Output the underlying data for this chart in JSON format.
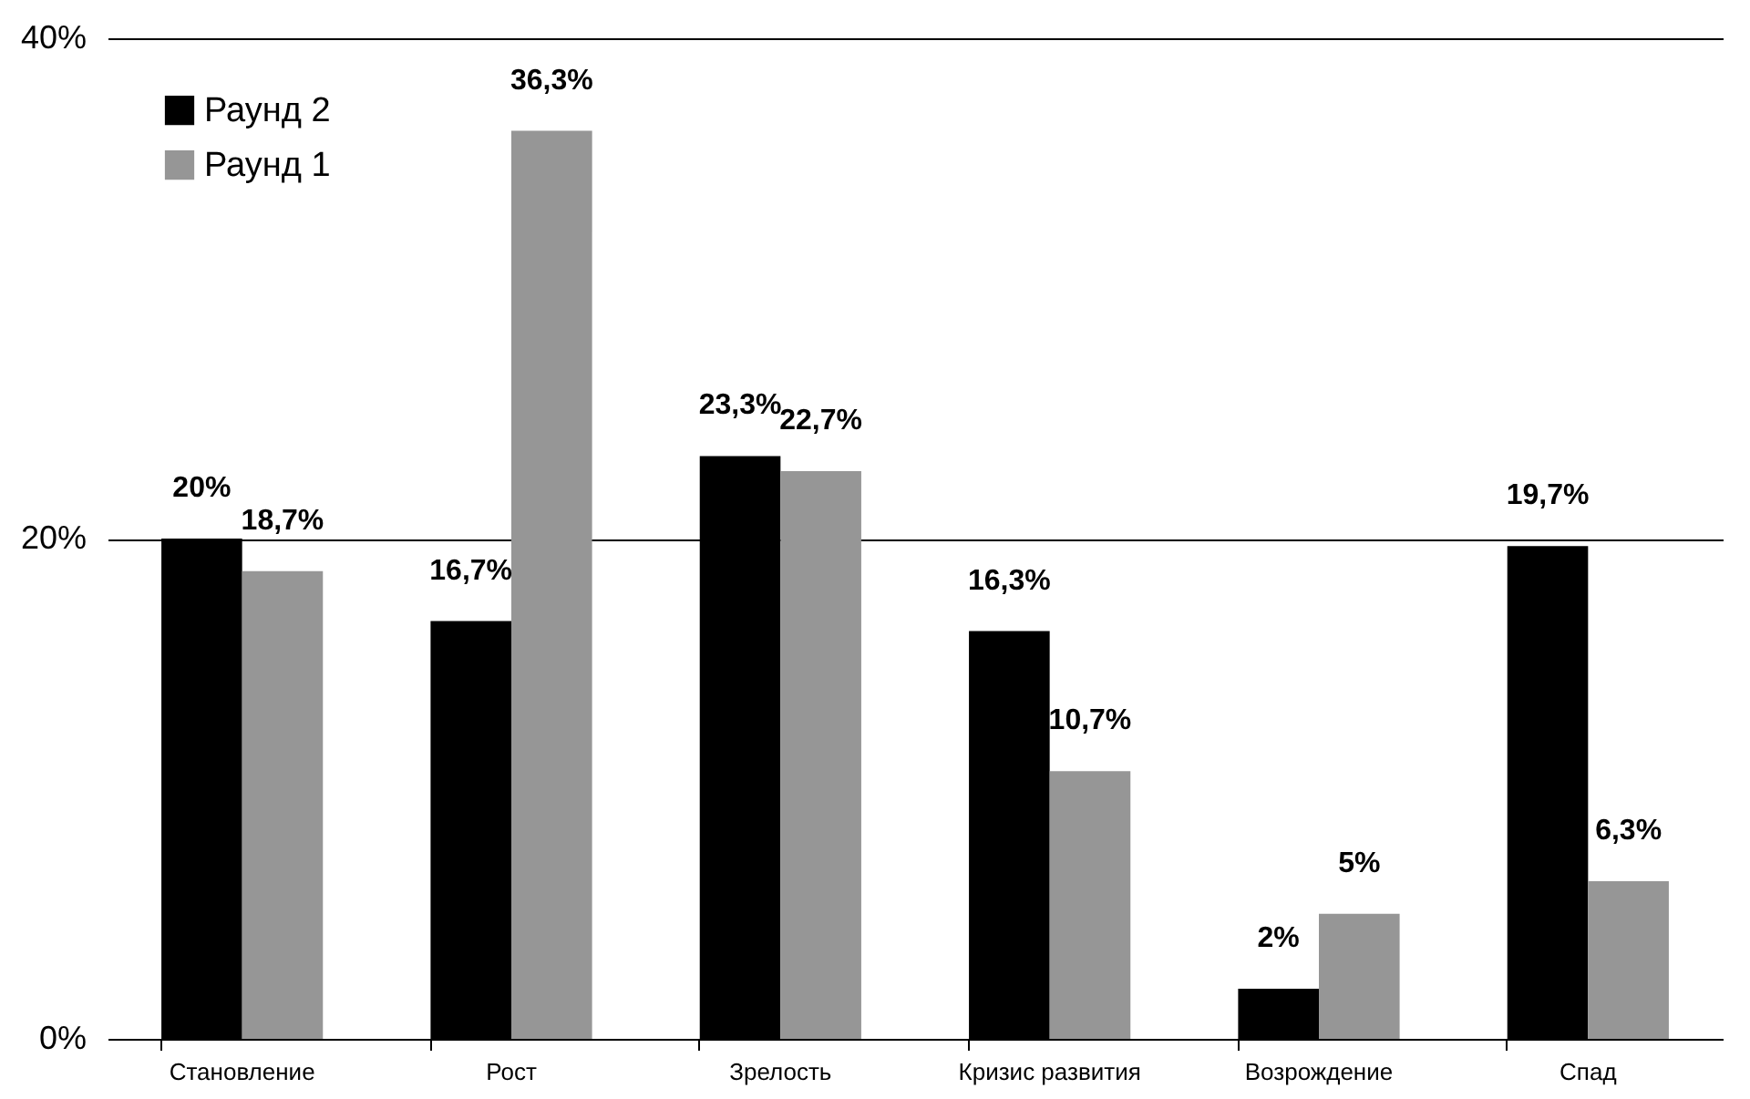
{
  "chart_data": {
    "type": "bar",
    "categories": [
      "Становление",
      "Рост",
      "Зрелость",
      "Кризис развития",
      "Возрождение",
      "Спад"
    ],
    "series": [
      {
        "name": "Раунд 2",
        "color": "#000000",
        "values": [
          20,
          16.7,
          23.3,
          16.3,
          2,
          19.7
        ],
        "value_labels": [
          "20%",
          "16,7%",
          "23,3%",
          "16,3%",
          "2%",
          "19,7%"
        ]
      },
      {
        "name": "Раунд 1",
        "color": "#969696",
        "values": [
          18.7,
          36.3,
          22.7,
          10.7,
          5,
          6.3
        ],
        "value_labels": [
          "18,7%",
          "36,3%",
          "22,7%",
          "10,7%",
          "5%",
          "6,3%"
        ]
      }
    ],
    "ylim": [
      0,
      40
    ],
    "yticks": [
      {
        "value": 0,
        "label": "0%"
      },
      {
        "value": 20,
        "label": "20%"
      },
      {
        "value": 40,
        "label": "40%"
      }
    ],
    "grid": "y",
    "legend": "top left"
  }
}
